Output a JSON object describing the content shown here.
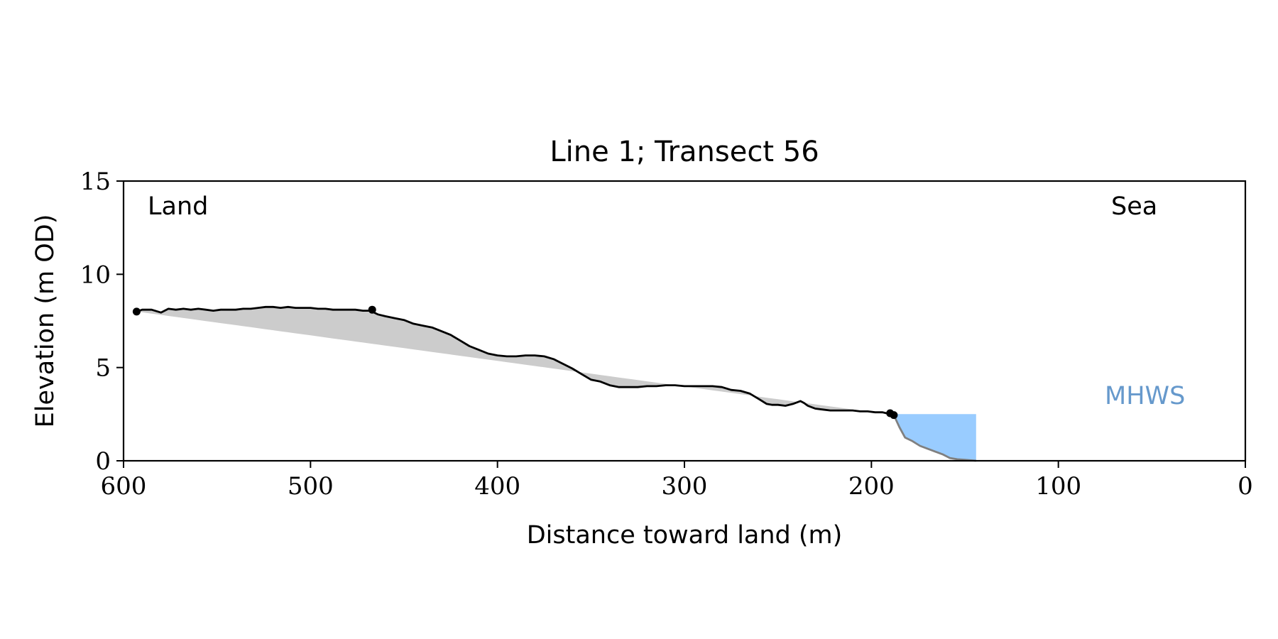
{
  "chart_data": {
    "type": "area",
    "title": "Line 1; Transect 56",
    "xlabel": "Distance toward land (m)",
    "ylabel": "Elevation (m OD)",
    "xlim": [
      600,
      0
    ],
    "ylim": [
      0,
      15
    ],
    "xticks": [
      600,
      500,
      400,
      300,
      200,
      100,
      0
    ],
    "yticks": [
      0,
      5,
      10,
      15
    ],
    "grid": false,
    "annotations": {
      "land": "Land",
      "sea": "Sea",
      "mhws": "MHWS"
    },
    "colors": {
      "profile": "#000000",
      "below_mhws_profile": "#808080",
      "fill_between": "#cccccc",
      "water_fill": "#99ccff",
      "mhws_label": "#6699cc"
    },
    "mhws_level": 2.5,
    "profile": {
      "x": [
        593,
        590,
        585,
        580,
        576,
        572,
        568,
        564,
        560,
        556,
        552,
        548,
        544,
        540,
        536,
        532,
        528,
        524,
        520,
        516,
        512,
        508,
        504,
        500,
        496,
        492,
        488,
        484,
        480,
        476,
        472,
        468,
        464,
        460,
        455,
        450,
        445,
        440,
        435,
        430,
        425,
        420,
        415,
        410,
        405,
        400,
        395,
        390,
        385,
        380,
        375,
        370,
        365,
        360,
        355,
        350,
        345,
        340,
        335,
        330,
        325,
        320,
        315,
        310,
        305,
        300,
        295,
        290,
        285,
        280,
        275,
        270,
        265,
        260,
        256,
        253,
        250,
        246,
        242,
        238,
        236,
        234,
        230,
        226,
        222,
        218,
        214,
        210,
        206,
        202,
        198,
        194,
        192,
        190,
        188
      ],
      "y": [
        8.0,
        8.1,
        8.1,
        7.95,
        8.15,
        8.1,
        8.15,
        8.1,
        8.15,
        8.1,
        8.05,
        8.1,
        8.1,
        8.1,
        8.15,
        8.15,
        8.2,
        8.25,
        8.25,
        8.2,
        8.25,
        8.2,
        8.2,
        8.2,
        8.15,
        8.15,
        8.1,
        8.1,
        8.1,
        8.1,
        8.05,
        8.05,
        7.85,
        7.75,
        7.65,
        7.55,
        7.35,
        7.25,
        7.15,
        6.95,
        6.75,
        6.45,
        6.15,
        5.95,
        5.75,
        5.65,
        5.6,
        5.6,
        5.65,
        5.65,
        5.6,
        5.45,
        5.2,
        4.95,
        4.65,
        4.35,
        4.25,
        4.05,
        3.95,
        3.95,
        3.95,
        4.0,
        4.0,
        4.05,
        4.05,
        4.0,
        4.0,
        4.0,
        4.0,
        3.95,
        3.8,
        3.75,
        3.6,
        3.3,
        3.05,
        3.0,
        3.0,
        2.95,
        3.05,
        3.2,
        3.1,
        2.95,
        2.8,
        2.75,
        2.7,
        2.7,
        2.7,
        2.7,
        2.65,
        2.65,
        2.6,
        2.6,
        2.55,
        2.55,
        2.45
      ]
    },
    "below_mhws_profile": {
      "x": [
        188,
        185,
        182,
        178,
        174,
        170,
        166,
        162,
        158,
        154,
        150,
        146,
        144
      ],
      "y": [
        2.45,
        1.8,
        1.25,
        1.05,
        0.8,
        0.65,
        0.5,
        0.35,
        0.15,
        0.08,
        0.05,
        0.02,
        0.0
      ]
    },
    "reference_line": {
      "x": [
        593,
        188
      ],
      "y": [
        8.0,
        2.45
      ]
    },
    "markers": {
      "x": [
        593,
        467,
        190,
        188
      ],
      "y": [
        8.0,
        8.1,
        2.55,
        2.45
      ]
    },
    "water": {
      "x": [
        188,
        144
      ],
      "level": 2.5
    }
  }
}
